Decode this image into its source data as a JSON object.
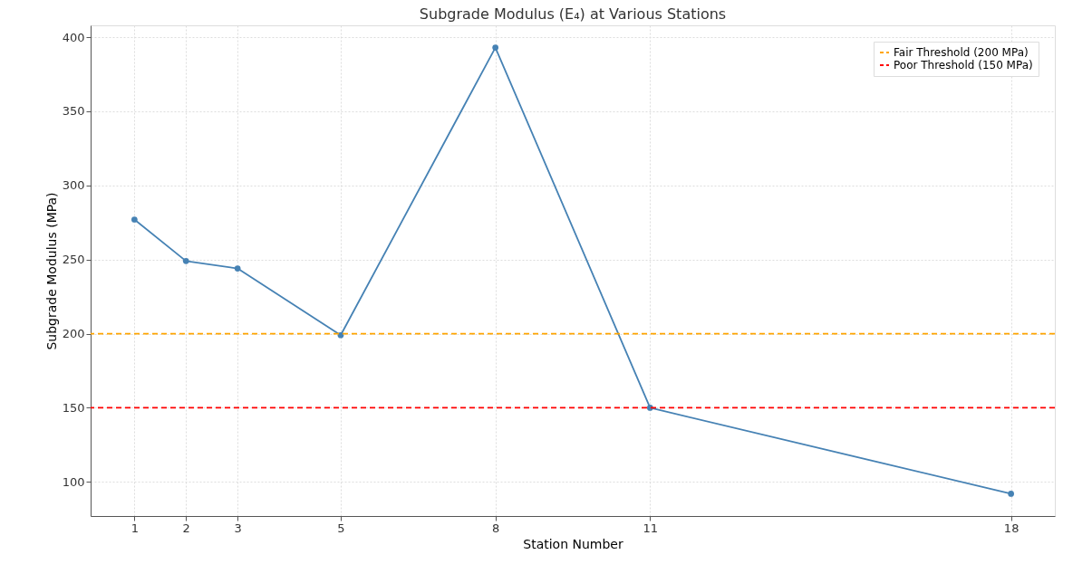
{
  "chart_data": {
    "type": "line",
    "title": "Subgrade Modulus (E₄) at Various Stations",
    "xlabel": "Station Number",
    "ylabel": "Subgrade Modulus (MPa)",
    "x": [
      1,
      2,
      3,
      5,
      8,
      11,
      18
    ],
    "series": [
      {
        "color": "#4682b4",
        "values": [
          277,
          249,
          244,
          199,
          393,
          150,
          92
        ]
      }
    ],
    "xlim": [
      0.15,
      18.85
    ],
    "xticks": [
      1,
      2,
      3,
      5,
      8,
      11,
      18
    ],
    "ylim": [
      77,
      408
    ],
    "yticks": [
      100,
      150,
      200,
      250,
      300,
      350,
      400
    ],
    "ref_lines": [
      {
        "axis": "y",
        "value": 200,
        "label": "Fair Threshold (200 MPa)",
        "color": "#ffa500",
        "line_style": "dashed"
      },
      {
        "axis": "y",
        "value": 150,
        "label": "Poor Threshold (150 MPa)",
        "color": "#ff0000",
        "line_style": "dashed"
      }
    ],
    "grid": true,
    "legend": "top right",
    "marker": "circle",
    "line_style": "solid"
  }
}
